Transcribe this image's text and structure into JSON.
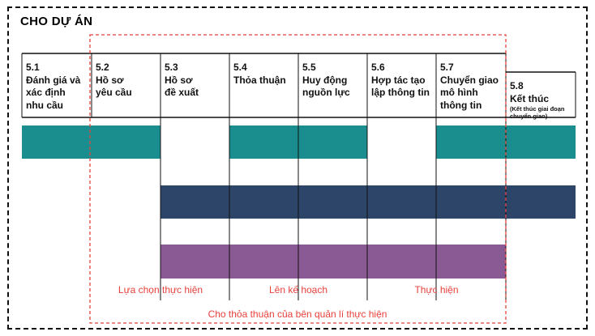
{
  "title": "CHO DỰ ÁN",
  "stages": [
    {
      "number": "5.1",
      "label": "Đánh giá và\nxác định\nnhu cầu"
    },
    {
      "number": "5.2",
      "label": "Hồ sơ\nyêu cầu"
    },
    {
      "number": "5.3",
      "label": "Hồ sơ\nđề xuất"
    },
    {
      "number": "5.4",
      "label": "Thỏa thuận"
    },
    {
      "number": "5.5",
      "label": "Huy động\nnguồn lực"
    },
    {
      "number": "5.6",
      "label": "Hợp tác tạo\nlập thông tin"
    },
    {
      "number": "5.7",
      "label": "Chuyển giao\nmô hình\nthông tin"
    },
    {
      "number": "5.8",
      "label": "Kết thúc",
      "note": "(Kết thúc giai đoạn\nchuyển giao)"
    }
  ],
  "bars": [
    {
      "color": "#1a8e8e",
      "segments": [
        [
          1,
          2
        ],
        [
          4,
          5
        ],
        [
          7,
          8
        ]
      ]
    },
    {
      "color": "#2c4569",
      "segments": [
        [
          3,
          8
        ]
      ]
    },
    {
      "color": "#8a5a94",
      "segments": [
        [
          3,
          7
        ]
      ]
    }
  ],
  "phases": [
    {
      "label": "Lựa chọn thực hiện"
    },
    {
      "label": "Lên kế hoạch"
    },
    {
      "label": "Thực hiện"
    }
  ],
  "bottom_label": "Cho thỏa thuận của bên quản lí thực hiện",
  "colors": {
    "accent_red": "#e8413c",
    "line": "#111111"
  }
}
